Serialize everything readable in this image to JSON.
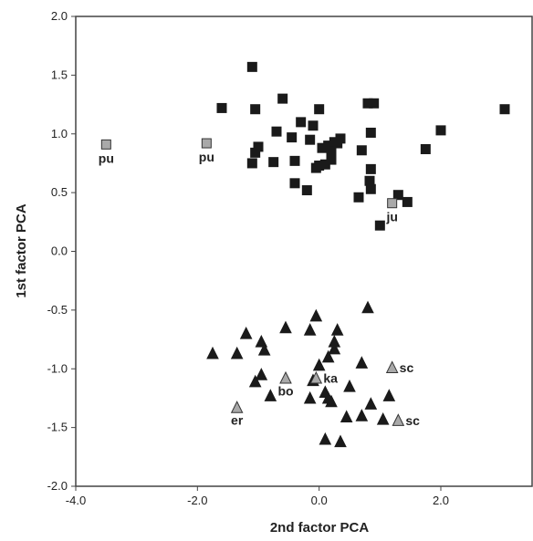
{
  "chart_data": {
    "type": "scatter",
    "title": "",
    "xlabel": "2nd factor PCA",
    "ylabel": "1st factor PCA",
    "xlim": [
      -4.0,
      3.5
    ],
    "ylim": [
      -2.0,
      2.0
    ],
    "x_ticks": [
      -4.0,
      -2.0,
      0.0,
      2.0
    ],
    "x_tick_labels": [
      "-4.0",
      "-2.0",
      "0.0",
      "2.0"
    ],
    "y_ticks": [
      2.0,
      1.5,
      1.0,
      0.5,
      0.0,
      -0.5,
      -1.0,
      -1.5,
      -2.0
    ],
    "y_tick_labels": [
      "2.0",
      "1.5",
      "1.0",
      "0.5",
      "0.0",
      "-0.5",
      "-1.0",
      "-1.5",
      "-2.0"
    ],
    "grid": false,
    "legend": "none",
    "colors": {
      "dark": "#1a1a1a",
      "light": "#a9a9a9"
    },
    "series": [
      {
        "marker": "square",
        "color": "#1a1a1a",
        "points": [
          [
            -1.1,
            1.57
          ],
          [
            -1.6,
            1.22
          ],
          [
            -1.05,
            1.21
          ],
          [
            -0.6,
            1.3
          ],
          [
            -0.3,
            1.1
          ],
          [
            -0.1,
            1.07
          ],
          [
            0.0,
            1.21
          ],
          [
            -0.7,
            1.02
          ],
          [
            -1.05,
            0.84
          ],
          [
            -1.0,
            0.89
          ],
          [
            -0.45,
            0.97
          ],
          [
            -0.15,
            0.95
          ],
          [
            0.05,
            0.88
          ],
          [
            0.15,
            0.9
          ],
          [
            0.25,
            0.93
          ],
          [
            0.35,
            0.96
          ],
          [
            0.3,
            0.92
          ],
          [
            0.2,
            0.85
          ],
          [
            -1.1,
            0.75
          ],
          [
            -0.75,
            0.76
          ],
          [
            -0.4,
            0.77
          ],
          [
            0.2,
            0.78
          ],
          [
            0.1,
            0.74
          ],
          [
            0.0,
            0.73
          ],
          [
            -0.05,
            0.71
          ],
          [
            0.7,
            0.86
          ],
          [
            0.8,
            1.26
          ],
          [
            0.9,
            1.26
          ],
          [
            0.85,
            1.01
          ],
          [
            0.85,
            0.7
          ],
          [
            0.83,
            0.6
          ],
          [
            0.85,
            0.53
          ],
          [
            0.65,
            0.46
          ],
          [
            1.3,
            0.48
          ],
          [
            1.45,
            0.42
          ],
          [
            1.0,
            0.22
          ],
          [
            -0.4,
            0.58
          ],
          [
            -0.2,
            0.52
          ],
          [
            1.75,
            0.87
          ],
          [
            2.0,
            1.03
          ],
          [
            3.05,
            1.21
          ]
        ]
      },
      {
        "marker": "square",
        "color": "#a9a9a9",
        "points": [
          [
            -3.5,
            0.91
          ],
          [
            -1.85,
            0.92
          ],
          [
            1.2,
            0.41
          ]
        ],
        "labels": [
          "pu",
          "pu",
          "ju"
        ]
      },
      {
        "marker": "triangle",
        "color": "#1a1a1a",
        "points": [
          [
            -1.75,
            -0.87
          ],
          [
            -1.35,
            -0.87
          ],
          [
            -1.2,
            -0.7
          ],
          [
            -0.55,
            -0.65
          ],
          [
            -0.05,
            -0.55
          ],
          [
            -0.15,
            -0.67
          ],
          [
            0.3,
            -0.67
          ],
          [
            0.8,
            -0.48
          ],
          [
            -0.95,
            -0.77
          ],
          [
            -0.9,
            -0.84
          ],
          [
            0.25,
            -0.83
          ],
          [
            0.25,
            -0.77
          ],
          [
            0.15,
            -0.9
          ],
          [
            -0.95,
            -1.05
          ],
          [
            -1.05,
            -1.11
          ],
          [
            0.0,
            -0.97
          ],
          [
            0.7,
            -0.95
          ],
          [
            -0.1,
            -1.1
          ],
          [
            0.5,
            -1.15
          ],
          [
            -0.8,
            -1.23
          ],
          [
            -0.15,
            -1.25
          ],
          [
            0.15,
            -1.25
          ],
          [
            0.2,
            -1.28
          ],
          [
            0.1,
            -1.2
          ],
          [
            0.85,
            -1.3
          ],
          [
            1.15,
            -1.23
          ],
          [
            0.45,
            -1.41
          ],
          [
            0.7,
            -1.4
          ],
          [
            1.05,
            -1.43
          ],
          [
            0.1,
            -1.6
          ],
          [
            0.35,
            -1.62
          ]
        ]
      },
      {
        "marker": "triangle",
        "color": "#a9a9a9",
        "points": [
          [
            -1.35,
            -1.33
          ],
          [
            -0.55,
            -1.08
          ],
          [
            -0.05,
            -1.08
          ],
          [
            1.2,
            -0.99
          ],
          [
            1.3,
            -1.44
          ]
        ],
        "labels": [
          "er",
          "bo",
          "ka",
          "sc",
          "sc"
        ]
      }
    ]
  }
}
